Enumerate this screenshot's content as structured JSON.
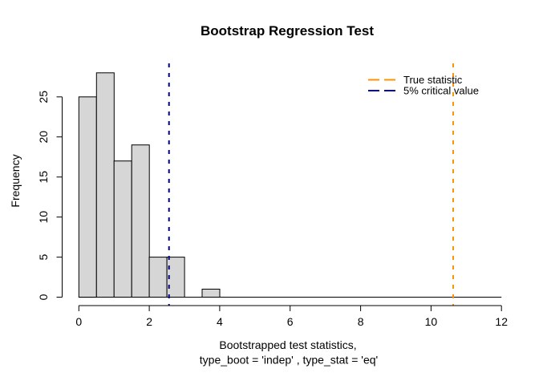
{
  "window": {
    "background": "#ffffff"
  },
  "chart_data": {
    "type": "histogram",
    "title": "Bootstrap Regression Test",
    "xlabel": [
      "Bootstrapped test statistics,",
      "type_boot = 'indep' , type_stat = 'eq'"
    ],
    "ylabel": "Frequency",
    "xlim": [
      0,
      12
    ],
    "ylim": [
      0,
      28
    ],
    "xticks": [
      0,
      2,
      4,
      6,
      8,
      10,
      12
    ],
    "yticks": [
      0,
      5,
      10,
      15,
      20,
      25
    ],
    "bins": {
      "start": 0,
      "width": 0.5,
      "counts": [
        25,
        28,
        17,
        19,
        5,
        5,
        0,
        1,
        0,
        0,
        0,
        0,
        0,
        0,
        0,
        0,
        0,
        0,
        0,
        0,
        0,
        0,
        0,
        0
      ]
    },
    "bar_fill": "#d6d6d6",
    "bar_stroke": "#000000",
    "axis_color": "#000000",
    "grid": false,
    "vlines": [
      {
        "id": "true-statistic",
        "x": 10.63,
        "color": "#ff9300",
        "style": "dashed",
        "width": 2
      },
      {
        "id": "critical-value-5pct",
        "x": 2.56,
        "color": "#000080",
        "style": "dashed",
        "width": 2
      }
    ],
    "legend": {
      "position": "top-right",
      "box": false,
      "entries": [
        {
          "label": "True statistic",
          "color": "#ff9300",
          "style": "dashed"
        },
        {
          "label": "5% critical value",
          "color": "#000080",
          "style": "dashed"
        }
      ]
    }
  }
}
